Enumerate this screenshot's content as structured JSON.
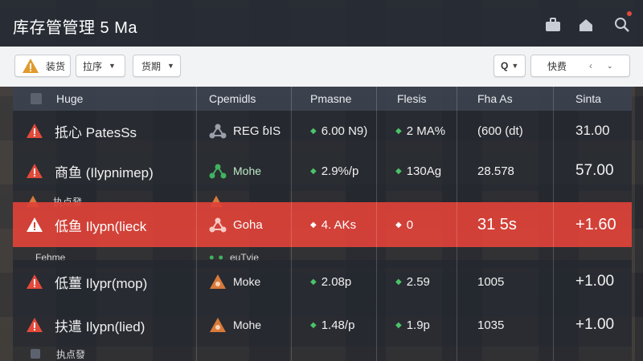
{
  "app": {
    "title": "库存管管理 5 Ma"
  },
  "toolbar": {
    "btn1_label": "装货",
    "btn2_label": "拉序",
    "btn3_label": "货期",
    "search_prefix": "Q",
    "field_label": "快费",
    "field_suffix": "‹"
  },
  "table": {
    "headers": [
      "Huge",
      "Cpemidls",
      "Pmasne",
      "Flesis",
      "Fha As",
      "Sinta"
    ],
    "rows": [
      {
        "kind": "main",
        "name": "抵心 PatesSs",
        "c2": "REG ɓIS",
        "c3": "6.00 N9)",
        "c4": "2 MA%",
        "c5": "(600 (dt)",
        "c6": "31.00"
      },
      {
        "kind": "main",
        "name": "商鱼 (Ilypnimep)",
        "c2": "Mohe",
        "c3": "2.9%/p",
        "c4": "130Ag",
        "c5": "28.578",
        "c6": "57.00"
      },
      {
        "kind": "sub",
        "name": "执点發"
      },
      {
        "kind": "alert",
        "name": "低鱼 Ilypn(lieck",
        "c2": "Goha",
        "c3": "4. AKs",
        "c4": "0",
        "c5": "31 5s",
        "c6": "+1.60"
      },
      {
        "kind": "sub",
        "name": "Fehme",
        "c2": "euTvie"
      },
      {
        "kind": "main",
        "name": "低薑 Ilypr(mop)",
        "c2": "Moke",
        "c3": "2.08p",
        "c4": "2.59",
        "c5": "1005",
        "c6": "+1.00"
      },
      {
        "kind": "main",
        "name": "扶遣 Ilypn(lied)",
        "c2": "Mohe",
        "c3": "1.48/p",
        "c4": "1.9p",
        "c5": "1035",
        "c6": "+1.00"
      },
      {
        "kind": "sub",
        "name": "执点發"
      }
    ]
  },
  "colors": {
    "alert": "#de4238",
    "warning": "#e24a3b",
    "accent_green": "#4bc46a",
    "node_orange": "#d9793a"
  }
}
